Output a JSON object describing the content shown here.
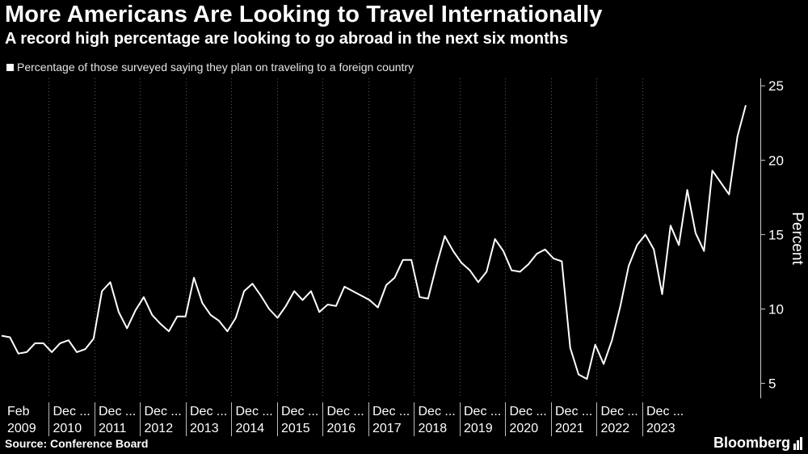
{
  "header": {
    "title": "More Americans Are Looking to Travel Internationally",
    "subtitle": "A record high percentage are looking to go abroad in the next six months",
    "legend": "Percentage of those surveyed saying they plan on traveling to a foreign country"
  },
  "footer": {
    "source": "Source: Conference Board",
    "brand": "Bloomberg"
  },
  "colors": {
    "background": "#000000",
    "line": "#ffffff",
    "grid": "#5a5a5a",
    "text": "#ffffff"
  },
  "chart_data": {
    "type": "line",
    "ylabel": "Percent",
    "ylim": [
      4,
      25.5
    ],
    "yticks": [
      5,
      10,
      15,
      20,
      25
    ],
    "grid": "vertical dotted",
    "period_labels": [
      {
        "top": "Feb",
        "bottom": "2009"
      },
      {
        "top": "Dec ...",
        "bottom": "2010"
      },
      {
        "top": "Dec ...",
        "bottom": "2011"
      },
      {
        "top": "Dec ...",
        "bottom": "2012"
      },
      {
        "top": "Dec ...",
        "bottom": "2013"
      },
      {
        "top": "Dec ...",
        "bottom": "2014"
      },
      {
        "top": "Dec ...",
        "bottom": "2015"
      },
      {
        "top": "Dec ...",
        "bottom": "2016"
      },
      {
        "top": "Dec ...",
        "bottom": "2017"
      },
      {
        "top": "Dec ...",
        "bottom": "2018"
      },
      {
        "top": "Dec ...",
        "bottom": "2019"
      },
      {
        "top": "Dec ...",
        "bottom": "2020"
      },
      {
        "top": "Dec ...",
        "bottom": "2021"
      },
      {
        "top": "Dec ...",
        "bottom": "2022"
      },
      {
        "top": "Dec ...",
        "bottom": "2023"
      }
    ],
    "series": [
      {
        "values": [
          8.2,
          8.1,
          7.0,
          7.1,
          7.7,
          7.7,
          7.1,
          7.7,
          7.9,
          7.1,
          7.3,
          8.0,
          11.2,
          11.8,
          9.8,
          8.7,
          9.9,
          10.8,
          9.6,
          9.0,
          8.5,
          9.5,
          9.5,
          12.1,
          10.4,
          9.6,
          9.2,
          8.5,
          9.4,
          11.2,
          11.7,
          10.9,
          10.0,
          9.4,
          10.2,
          11.2,
          10.6,
          11.2,
          9.8,
          10.3,
          10.2,
          11.5,
          11.2,
          10.9,
          10.6,
          10.1,
          11.6,
          12.1,
          13.3,
          13.3,
          10.8,
          10.7,
          12.9,
          14.9,
          13.9,
          13.1,
          12.6,
          11.8,
          12.5,
          14.7,
          13.9,
          12.6,
          12.5,
          13.0,
          13.7,
          14.0,
          13.4,
          13.2,
          7.4,
          5.6,
          5.3,
          7.6,
          6.3,
          7.9,
          10.2,
          12.9,
          14.3,
          15.0,
          14.0,
          11.0,
          15.6,
          14.3,
          18.0,
          15.1,
          13.9,
          19.3,
          18.5,
          17.7,
          21.6,
          23.7
        ]
      }
    ]
  }
}
